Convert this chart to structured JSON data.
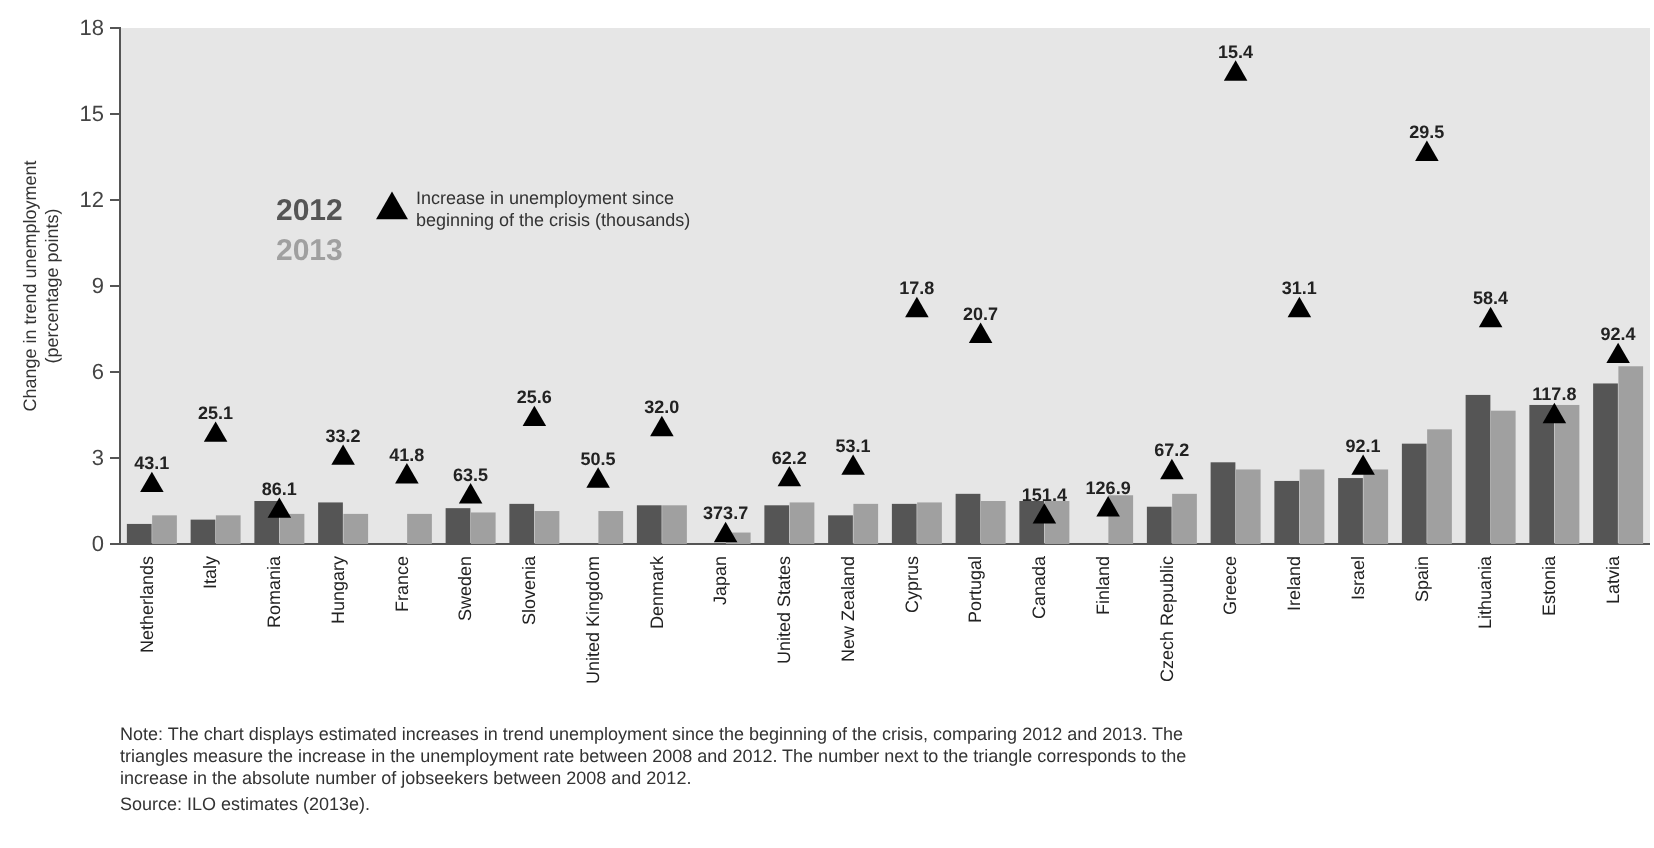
{
  "chart_data": {
    "type": "bar",
    "ylabel": "Change in trend unemployment (percentage points)",
    "categories": [
      "Netherlands",
      "Italy",
      "Romania",
      "Hungary",
      "France",
      "Sweden",
      "Slovenia",
      "United Kingdom",
      "Denmark",
      "Japan",
      "United States",
      "New Zealand",
      "Cyprus",
      "Portugal",
      "Canada",
      "Finland",
      "Czech Republic",
      "Greece",
      "Ireland",
      "Israel",
      "Spain",
      "Lithuania",
      "Estonia",
      "Latvia"
    ],
    "series": [
      {
        "name": "2012",
        "color": "#555555",
        "values": [
          0.7,
          0.85,
          1.5,
          1.45,
          null,
          1.25,
          1.4,
          null,
          1.35,
          null,
          1.35,
          1.0,
          1.4,
          1.75,
          1.5,
          null,
          1.3,
          2.85,
          2.2,
          2.3,
          3.5,
          5.2,
          4.85,
          5.6
        ]
      },
      {
        "name": "2013",
        "color": "#a0a0a0",
        "values": [
          1.0,
          1.0,
          1.05,
          1.05,
          1.05,
          1.1,
          1.15,
          1.15,
          1.35,
          0.4,
          1.45,
          1.4,
          1.45,
          1.5,
          1.5,
          1.7,
          1.75,
          2.6,
          2.6,
          2.6,
          4.0,
          4.65,
          4.85,
          6.2
        ]
      },
      {
        "name": "Increase in unemployment since beginning of the crisis (thousands)",
        "type": "scatter",
        "marker": "triangle",
        "color": "#000000",
        "values": [
          2.05,
          3.8,
          1.15,
          3.0,
          2.35,
          1.65,
          4.35,
          2.2,
          4.0,
          0.3,
          2.25,
          2.65,
          8.15,
          7.25,
          0.95,
          1.2,
          2.5,
          16.4,
          8.15,
          2.65,
          13.6,
          7.8,
          4.45,
          6.55
        ]
      }
    ],
    "ylim": [
      0,
      18
    ],
    "yticks": [
      0,
      3,
      6,
      9,
      12,
      15,
      18
    ],
    "grid": false,
    "legend": "top left",
    "annotations": [
      {
        "text": "43.1",
        "x": "Netherlands",
        "y": 2.05
      },
      {
        "text": "25.1",
        "x": "Italy",
        "y": 3.8
      },
      {
        "text": "86.1",
        "x": "Romania",
        "y": 1.15
      },
      {
        "text": "33.2",
        "x": "Hungary",
        "y": 3.0
      },
      {
        "text": "41.8",
        "x": "France",
        "y": 2.35
      },
      {
        "text": "63.5",
        "x": "Sweden",
        "y": 1.65
      },
      {
        "text": "25.6",
        "x": "Slovenia",
        "y": 4.35
      },
      {
        "text": "50.5",
        "x": "United Kingdom",
        "y": 2.2
      },
      {
        "text": "32.0",
        "x": "Denmark",
        "y": 4.0
      },
      {
        "text": "373.7",
        "x": "Japan",
        "y": 0.3
      },
      {
        "text": "62.2",
        "x": "United States",
        "y": 2.25
      },
      {
        "text": "53.1",
        "x": "New Zealand",
        "y": 2.65
      },
      {
        "text": "17.8",
        "x": "Cyprus",
        "y": 8.15
      },
      {
        "text": "20.7",
        "x": "Portugal",
        "y": 7.25
      },
      {
        "text": "151.4",
        "x": "Canada",
        "y": 0.95
      },
      {
        "text": "126.9",
        "x": "Finland",
        "y": 1.2
      },
      {
        "text": "67.2",
        "x": "Czech Republic",
        "y": 2.5
      },
      {
        "text": "15.4",
        "x": "Greece",
        "y": 16.4
      },
      {
        "text": "31.1",
        "x": "Ireland",
        "y": 8.15
      },
      {
        "text": "92.1",
        "x": "Israel",
        "y": 2.65
      },
      {
        "text": "29.5",
        "x": "Spain",
        "y": 13.6
      },
      {
        "text": "58.4",
        "x": "Lithuania",
        "y": 7.8
      },
      {
        "text": "117.8",
        "x": "Estonia",
        "y": 4.45
      },
      {
        "text": "92.4",
        "x": "Latvia",
        "y": 6.55
      },
      "Note: The chart displays estimated increases in trend unemployment since the beginning of the crisis, comparing 2012 and 2013. The triangles measure the increase in the unemployment rate between 2008 and 2012. The number next to the triangle corresponds to the increase in the absolute number of jobseekers between 2008 and 2012.",
      "Source: ILO estimates (2013e)."
    ]
  }
}
